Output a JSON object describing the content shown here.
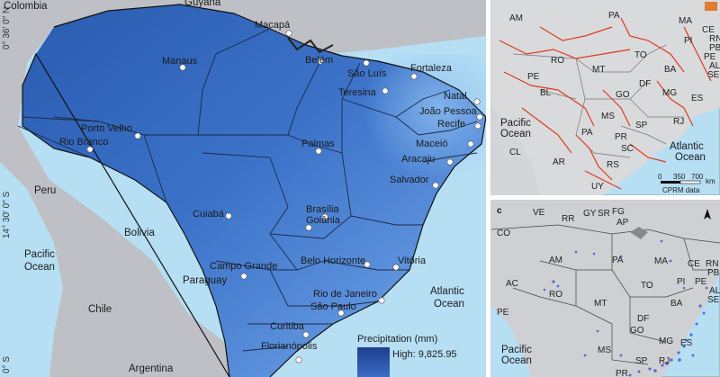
{
  "main_map": {
    "coords": [
      "0° 36′ 0″ N",
      "14° 30′ 0″ S",
      "0° S"
    ],
    "countries": [
      "Colombia",
      "Guyana",
      "Peru",
      "Bolivia",
      "Paraguay",
      "Chile",
      "Argentina"
    ],
    "oceans": {
      "pacific_line1": "Pacific",
      "pacific_line2": "Ocean",
      "atlantic_line1": "Atlantic",
      "atlantic_line2": "Ocean"
    },
    "cities": [
      "Macapá",
      "Manaus",
      "Belém",
      "São Luís",
      "Fortaleza",
      "Teresina",
      "Natal",
      "João Pessoa",
      "Recife",
      "Porto Velho",
      "Rio Branco",
      "Palmas",
      "Maceió",
      "Aracaju",
      "Salvador",
      "Brasília",
      "Goiânia",
      "Cuiabá",
      "Campo Grande",
      "Belo Horizonte",
      "Vitória",
      "Rio de Janeiro",
      "São Paulo",
      "Curitiba",
      "Florianópolis"
    ],
    "legend": {
      "title": "Precipitation (mm)",
      "high": "High: 9,825.95"
    },
    "colors": {
      "sea": "#b6dff4",
      "land": "#bfc0c5",
      "precip_dark": "#2d5fb2",
      "precip_light": "#79a9e6"
    }
  },
  "panel_b": {
    "states": [
      "AM",
      "PA",
      "MA",
      "CE",
      "RN",
      "PB",
      "PE",
      "AL",
      "SE",
      "PI",
      "TO",
      "RO",
      "MT",
      "BA",
      "GO",
      "DF",
      "MG",
      "ES",
      "MS",
      "SP",
      "RJ",
      "PR",
      "SC",
      "RS"
    ],
    "countries": [
      "PE",
      "BL",
      "PA",
      "AR",
      "UY",
      "CL"
    ],
    "oceans": {
      "pacific_line1": "Pacific",
      "pacific_line2": "Ocean",
      "atlantic_line1": "Atlantic",
      "atlantic_line2": "Ocean"
    },
    "scale": {
      "ticks": [
        "0",
        "350",
        "700"
      ],
      "unit": "km",
      "source": "CPRM data"
    },
    "colors": {
      "lines": "#e03a1e",
      "land": "#d9dadc"
    }
  },
  "panel_c": {
    "tag": "c",
    "countries": [
      "VE",
      "CO",
      "PE",
      "GY",
      "SR",
      "FG"
    ],
    "states": [
      "RR",
      "AP",
      "AM",
      "PA",
      "MA",
      "CE",
      "RN",
      "PB",
      "PE",
      "AL",
      "SE",
      "PI",
      "TO",
      "BA",
      "AC",
      "RO",
      "MT",
      "DF",
      "GO",
      "MG",
      "ES",
      "MS",
      "SP",
      "RJ",
      "PR"
    ],
    "oceans": {
      "pacific_line1": "Pacific",
      "pacific_line2": "Ocean"
    },
    "colors": {
      "dots": "#5a6ad0",
      "land": "#cfd0d3"
    }
  }
}
